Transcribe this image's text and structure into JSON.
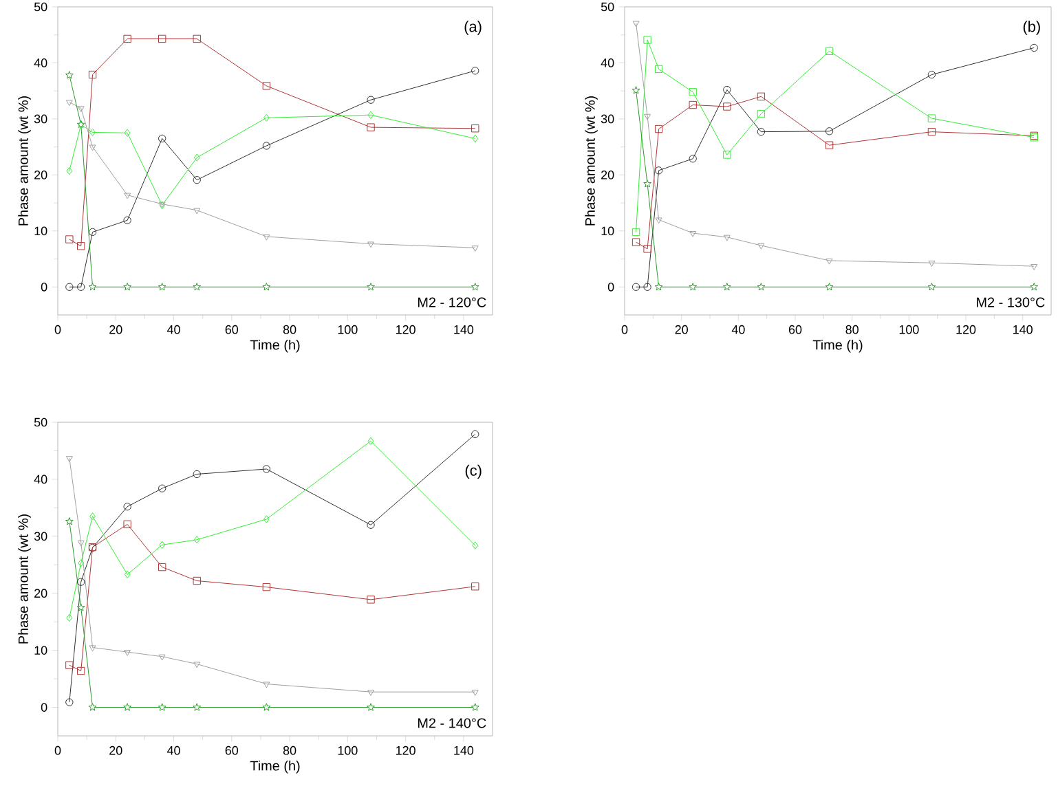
{
  "chart_data": [
    {
      "type": "line",
      "xlabel": "Time (h)",
      "ylabel": "Phase amount (wt %)",
      "annotations": [
        "(a)",
        "M2 - 120°C"
      ],
      "x": [
        4,
        8,
        12,
        24,
        36,
        48,
        72,
        108,
        144
      ],
      "xlim": [
        0,
        150
      ],
      "ylim": [
        -5,
        50
      ],
      "xticks": [
        0,
        20,
        40,
        60,
        80,
        100,
        120,
        140
      ],
      "yticks": [
        0,
        10,
        20,
        30,
        40,
        50
      ],
      "line_style": "solid",
      "series": [
        {
          "color": "#303030",
          "marker": "circle",
          "values": [
            0,
            0,
            9.8,
            11.9,
            26.5,
            19.1,
            25.2,
            33.4,
            38.6
          ]
        },
        {
          "color": "#b03535",
          "marker": "square",
          "values": [
            8.5,
            7.3,
            37.9,
            44.3,
            44.3,
            44.3,
            35.9,
            28.5,
            28.3
          ]
        },
        {
          "color": "#33ee33",
          "marker": "diamond",
          "values": [
            20.7,
            29.0,
            27.6,
            27.5,
            14.6,
            23.1,
            30.2,
            30.7,
            26.5
          ]
        },
        {
          "color": "#a0a0a0",
          "marker": "triangle",
          "values": [
            33.0,
            31.9,
            25.0,
            16.4,
            14.8,
            13.7,
            9.0,
            7.7,
            7.0
          ]
        },
        {
          "color": "#2a9a2a",
          "marker": "star",
          "values": [
            37.8,
            29.0,
            0,
            0,
            0,
            0,
            0,
            0,
            0
          ]
        }
      ]
    },
    {
      "type": "line",
      "xlabel": "Time (h)",
      "ylabel": "Phase amount (wt %)",
      "annotations": [
        "(b)",
        "M2 - 130°C"
      ],
      "x": [
        4,
        8,
        12,
        24,
        36,
        48,
        72,
        108,
        144
      ],
      "xlim": [
        0,
        150
      ],
      "ylim": [
        -5,
        50
      ],
      "xticks": [
        0,
        20,
        40,
        60,
        80,
        100,
        120,
        140
      ],
      "yticks": [
        0,
        10,
        20,
        30,
        40,
        50
      ],
      "line_style": "solid",
      "series": [
        {
          "color": "#303030",
          "marker": "circle",
          "values": [
            0,
            0,
            20.8,
            22.9,
            35.2,
            27.7,
            27.8,
            37.9,
            42.7
          ]
        },
        {
          "color": "#b03535",
          "marker": "square",
          "values": [
            8.0,
            6.8,
            28.2,
            32.5,
            32.2,
            34.0,
            25.3,
            27.7,
            27.0
          ]
        },
        {
          "color": "#33ee33",
          "marker": "square",
          "values": [
            9.8,
            44.1,
            38.9,
            34.8,
            23.6,
            30.9,
            42.1,
            30.1,
            26.7
          ]
        },
        {
          "color": "#a0a0a0",
          "marker": "triangle",
          "values": [
            47.1,
            30.5,
            12.0,
            9.6,
            8.9,
            7.4,
            4.7,
            4.3,
            3.7
          ]
        },
        {
          "color": "#2a9a2a",
          "marker": "star",
          "values": [
            35.1,
            18.4,
            0,
            0,
            0,
            0,
            0,
            0,
            0
          ]
        }
      ]
    },
    {
      "type": "line",
      "xlabel": "Time (h)",
      "ylabel": "Phase amount (wt %)",
      "annotations": [
        "(c)",
        "M2 - 140°C"
      ],
      "x": [
        4,
        8,
        12,
        24,
        36,
        48,
        72,
        108,
        144
      ],
      "xlim": [
        0,
        150
      ],
      "ylim": [
        -5,
        50
      ],
      "xticks": [
        0,
        20,
        40,
        60,
        80,
        100,
        120,
        140
      ],
      "yticks": [
        0,
        10,
        20,
        30,
        40,
        50
      ],
      "line_style": "solid",
      "series": [
        {
          "color": "#303030",
          "marker": "circle",
          "values": [
            0.9,
            22.0,
            28.0,
            35.2,
            38.4,
            40.9,
            41.8,
            32.0,
            47.9
          ]
        },
        {
          "color": "#b03535",
          "marker": "square",
          "values": [
            7.4,
            6.4,
            28.1,
            32.1,
            24.6,
            22.2,
            21.1,
            18.9,
            21.2
          ]
        },
        {
          "color": "#33ee33",
          "marker": "diamond",
          "values": [
            15.7,
            25.3,
            33.5,
            23.3,
            28.5,
            29.4,
            33.0,
            46.7,
            28.4
          ]
        },
        {
          "color": "#a0a0a0",
          "marker": "triangle",
          "values": [
            43.7,
            28.9,
            10.5,
            9.7,
            8.9,
            7.6,
            4.1,
            2.7,
            2.7
          ]
        },
        {
          "color": "#2a9a2a",
          "marker": "star",
          "values": [
            32.6,
            17.5,
            0,
            0,
            0,
            0,
            0,
            0,
            0
          ]
        }
      ]
    }
  ]
}
